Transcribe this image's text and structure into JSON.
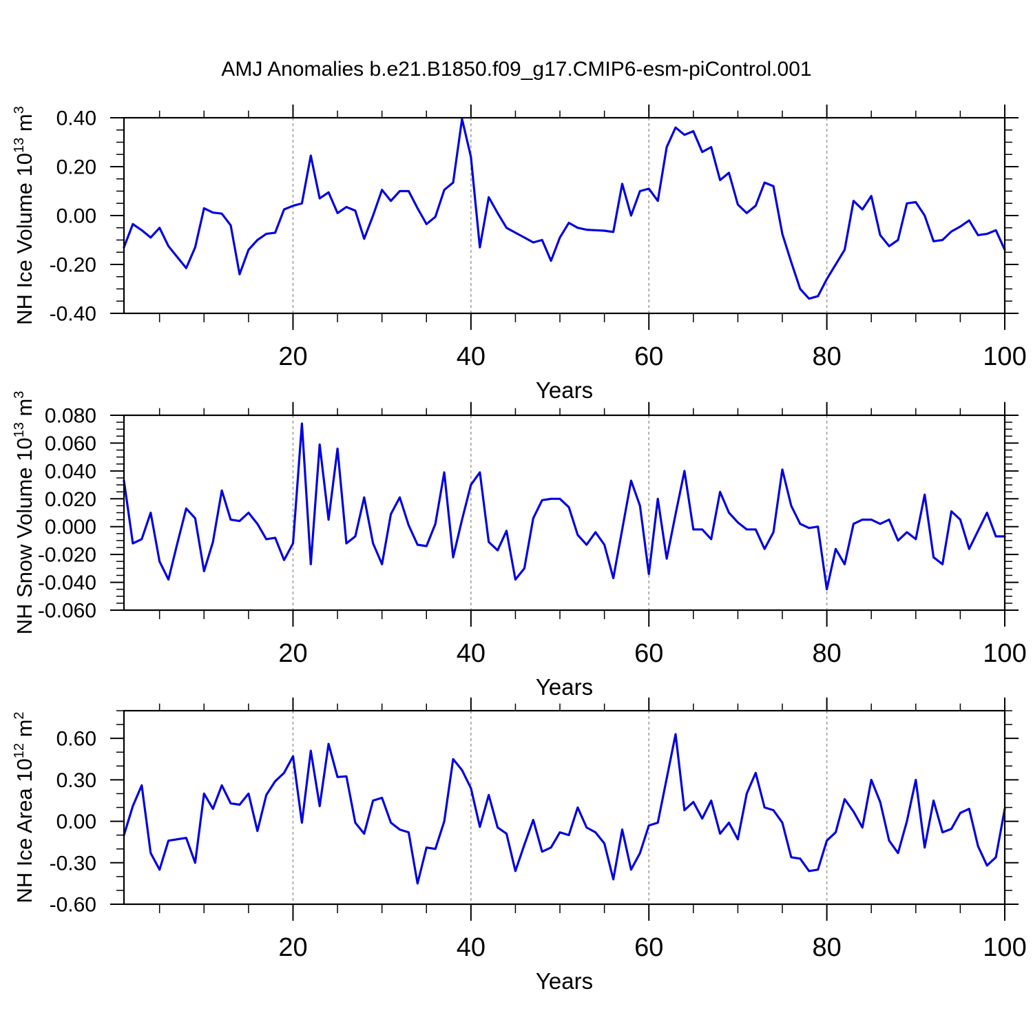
{
  "title": "AMJ Anomalies b.e21.B1850.f09_g17.CMIP6-esm-piControl.001",
  "colors": {
    "line": "#0202e0",
    "axis": "#000000",
    "gridline": "#999999",
    "background": "#ffffff"
  },
  "chart_data": [
    {
      "type": "line",
      "name": "nh-ice-volume",
      "xlabel": "Years",
      "ylabel": "NH Ice Volume 10^13 m^3",
      "ylabel_parts": [
        {
          "t": "NH Ice Volume 10"
        },
        {
          "t": "13",
          "sup": true
        },
        {
          "t": " m"
        },
        {
          "t": "3",
          "sup": true
        }
      ],
      "xlim": [
        1,
        100
      ],
      "ylim": [
        -0.4,
        0.4
      ],
      "xticks": [
        20,
        40,
        60,
        80,
        100
      ],
      "xtick_labels": [
        "20",
        "40",
        "60",
        "80",
        "100"
      ],
      "x_minor_step": 5,
      "ytick_values": [
        0.4,
        0.2,
        0.0,
        -0.2,
        -0.4
      ],
      "ytick_labels": [
        "0.40",
        "0.20",
        "0.00",
        "-0.20",
        "-0.40"
      ],
      "y_minor_step": 0.05,
      "grid_x": [
        20,
        40,
        60,
        80
      ],
      "x_start": 1,
      "x_step": 1,
      "values": [
        -0.13,
        -0.035,
        -0.06,
        -0.09,
        -0.05,
        -0.125,
        -0.17,
        -0.215,
        -0.13,
        0.03,
        0.012,
        0.008,
        -0.04,
        -0.24,
        -0.14,
        -0.1,
        -0.075,
        -0.07,
        0.025,
        0.04,
        0.05,
        0.245,
        0.07,
        0.095,
        0.01,
        0.035,
        0.02,
        -0.095,
        0.0,
        0.105,
        0.06,
        0.1,
        0.1,
        0.03,
        -0.035,
        -0.005,
        0.105,
        0.135,
        0.395,
        0.24,
        -0.13,
        0.075,
        0.01,
        -0.05,
        -0.07,
        -0.09,
        -0.11,
        -0.1,
        -0.185,
        -0.09,
        -0.03,
        -0.05,
        -0.058,
        -0.06,
        -0.062,
        -0.067,
        0.13,
        0.0,
        0.1,
        0.11,
        0.06,
        0.28,
        0.36,
        0.33,
        0.345,
        0.26,
        0.28,
        0.145,
        0.175,
        0.045,
        0.01,
        0.04,
        0.135,
        0.12,
        -0.075,
        -0.19,
        -0.3,
        -0.34,
        -0.33,
        -0.26,
        -0.2,
        -0.14,
        0.06,
        0.025,
        0.08,
        -0.08,
        -0.125,
        -0.1,
        0.05,
        0.055,
        0.0,
        -0.105,
        -0.1,
        -0.065,
        -0.045,
        -0.02,
        -0.08,
        -0.075,
        -0.06,
        -0.14
      ]
    },
    {
      "type": "line",
      "name": "nh-snow-volume",
      "xlabel": "Years",
      "ylabel": "NH Snow Volume 10^13 m^3",
      "ylabel_parts": [
        {
          "t": "NH Snow Volume 10"
        },
        {
          "t": "13",
          "sup": true
        },
        {
          "t": " m"
        },
        {
          "t": "3",
          "sup": true
        }
      ],
      "xlim": [
        1,
        100
      ],
      "ylim": [
        -0.06,
        0.08
      ],
      "xticks": [
        20,
        40,
        60,
        80,
        100
      ],
      "xtick_labels": [
        "20",
        "40",
        "60",
        "80",
        "100"
      ],
      "x_minor_step": 5,
      "ytick_values": [
        0.08,
        0.06,
        0.04,
        0.02,
        0.0,
        -0.02,
        -0.04,
        -0.06
      ],
      "ytick_labels": [
        "0.080",
        "0.060",
        "0.040",
        "0.020",
        "0.000",
        "-0.020",
        "-0.040",
        "-0.060"
      ],
      "y_minor_step": 0.005,
      "grid_x": [
        20,
        40,
        60,
        80
      ],
      "x_start": 1,
      "x_step": 1,
      "values": [
        0.033,
        -0.012,
        -0.009,
        0.01,
        -0.025,
        -0.038,
        -0.012,
        0.013,
        0.006,
        -0.032,
        -0.011,
        0.026,
        0.005,
        0.004,
        0.01,
        0.002,
        -0.009,
        -0.008,
        -0.024,
        -0.012,
        0.074,
        -0.027,
        0.059,
        0.005,
        0.056,
        -0.012,
        -0.007,
        0.021,
        -0.012,
        -0.027,
        0.009,
        0.021,
        0.001,
        -0.013,
        -0.014,
        0.002,
        0.039,
        -0.022,
        0.005,
        0.03,
        0.039,
        -0.011,
        -0.017,
        -0.003,
        -0.038,
        -0.03,
        0.006,
        0.019,
        0.02,
        0.02,
        0.014,
        -0.006,
        -0.013,
        -0.004,
        -0.013,
        -0.037,
        -0.002,
        0.033,
        0.015,
        -0.034,
        0.02,
        -0.023,
        0.009,
        0.04,
        -0.002,
        -0.002,
        -0.009,
        0.025,
        0.01,
        0.003,
        -0.002,
        -0.002,
        -0.016,
        -0.004,
        0.041,
        0.015,
        0.002,
        -0.001,
        0.0,
        -0.045,
        -0.016,
        -0.027,
        0.002,
        0.005,
        0.005,
        0.002,
        0.005,
        -0.01,
        -0.004,
        -0.009,
        0.023,
        -0.022,
        -0.027,
        0.011,
        0.005,
        -0.016,
        -0.003,
        0.01,
        -0.007,
        -0.007
      ]
    },
    {
      "type": "line",
      "name": "nh-ice-area",
      "xlabel": "Years",
      "ylabel": "NH Ice Area 10^12 m^2",
      "ylabel_parts": [
        {
          "t": "NH Ice Area 10"
        },
        {
          "t": "12",
          "sup": true
        },
        {
          "t": " m"
        },
        {
          "t": "2",
          "sup": true
        }
      ],
      "xlim": [
        1,
        100
      ],
      "ylim": [
        -0.6,
        0.8
      ],
      "xticks": [
        20,
        40,
        60,
        80,
        100
      ],
      "xtick_labels": [
        "20",
        "40",
        "60",
        "80",
        "100"
      ],
      "x_minor_step": 5,
      "ytick_values": [
        0.6,
        0.3,
        0.0,
        -0.3,
        -0.6
      ],
      "ytick_labels": [
        "0.60",
        "0.30",
        "0.00",
        "-0.30",
        "-0.60"
      ],
      "y_minor_step": 0.1,
      "grid_x": [
        20,
        40,
        60,
        80
      ],
      "x_start": 1,
      "x_step": 1,
      "values": [
        -0.1,
        0.11,
        0.26,
        -0.23,
        -0.35,
        -0.14,
        -0.13,
        -0.12,
        -0.3,
        0.2,
        0.09,
        0.26,
        0.13,
        0.12,
        0.2,
        -0.07,
        0.19,
        0.29,
        0.35,
        0.47,
        -0.01,
        0.51,
        0.11,
        0.56,
        0.32,
        0.325,
        -0.01,
        -0.09,
        0.15,
        0.17,
        -0.01,
        -0.06,
        -0.08,
        -0.45,
        -0.19,
        -0.2,
        0.0,
        0.45,
        0.37,
        0.24,
        -0.04,
        0.19,
        -0.045,
        -0.09,
        -0.36,
        -0.17,
        0.01,
        -0.22,
        -0.19,
        -0.08,
        -0.1,
        0.1,
        -0.045,
        -0.08,
        -0.16,
        -0.42,
        -0.06,
        -0.35,
        -0.23,
        -0.03,
        -0.01,
        0.31,
        0.63,
        0.08,
        0.14,
        0.02,
        0.15,
        -0.09,
        -0.01,
        -0.13,
        0.2,
        0.35,
        0.1,
        0.08,
        -0.01,
        -0.26,
        -0.27,
        -0.36,
        -0.35,
        -0.14,
        -0.08,
        0.16,
        0.07,
        -0.045,
        0.3,
        0.14,
        -0.14,
        -0.23,
        0.0,
        0.3,
        -0.19,
        0.15,
        -0.08,
        -0.055,
        0.06,
        0.09,
        -0.18,
        -0.32,
        -0.26,
        0.09
      ]
    }
  ]
}
